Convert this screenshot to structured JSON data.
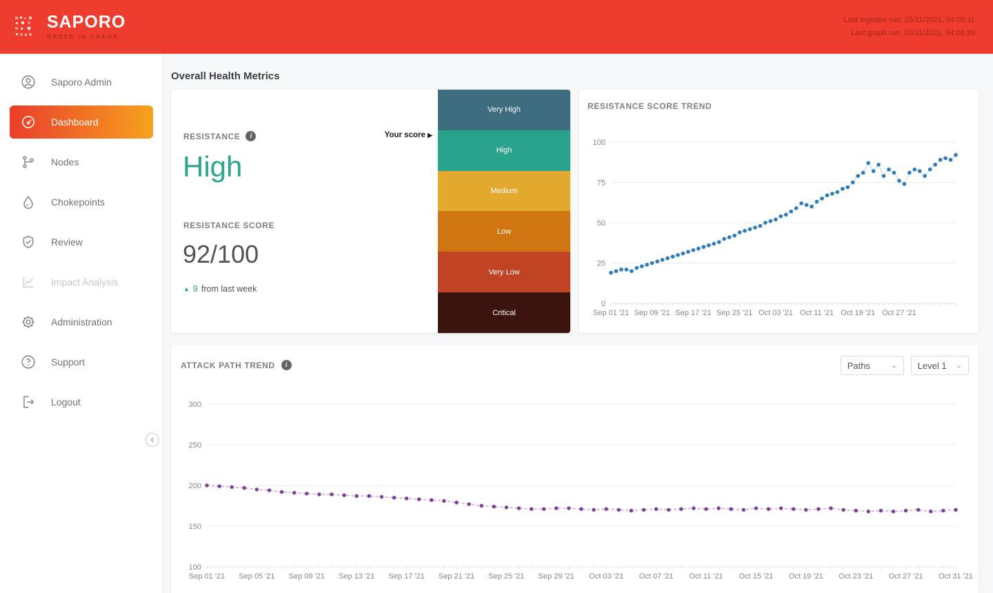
{
  "header": {
    "brand": "SAPORO",
    "tagline": "ORDER IN CHAOS",
    "last_ingestor_run": "Last ingestor run: 25/11/2021, 04:08:11",
    "last_graph_run": "Last graph run: 25/11/2021, 04:08:39",
    "background_color": "#ee3c2e"
  },
  "sidebar": {
    "items": [
      {
        "label": "Saporo Admin",
        "active": false,
        "disabled": false
      },
      {
        "label": "Dashboard",
        "active": true,
        "disabled": false
      },
      {
        "label": "Nodes",
        "active": false,
        "disabled": false
      },
      {
        "label": "Chokepoints",
        "active": false,
        "disabled": false
      },
      {
        "label": "Review",
        "active": false,
        "disabled": false
      },
      {
        "label": "Impact Analysis",
        "active": false,
        "disabled": true
      },
      {
        "label": "Administration",
        "active": false,
        "disabled": false
      },
      {
        "label": "Support",
        "active": false,
        "disabled": false
      },
      {
        "label": "Logout",
        "active": false,
        "disabled": false
      }
    ],
    "active_gradient": [
      "#ea3d2d",
      "#f6a21d"
    ]
  },
  "main": {
    "title": "Overall Health Metrics",
    "resistance_panel": {
      "label": "RESISTANCE",
      "value": "High",
      "value_color": "#2aa68c",
      "score_label": "RESISTANCE SCORE",
      "score": "92/100",
      "delta_arrow": "▲",
      "delta_value": "9",
      "delta_text": "from last week",
      "delta_color": "#27a572",
      "your_score_label": "Your score",
      "your_score_pointer": "▶",
      "scale": [
        {
          "label": "Very High",
          "color": "#3d6d7f"
        },
        {
          "label": "High",
          "color": "#2aa38d"
        },
        {
          "label": "Medium",
          "color": "#e3a92f"
        },
        {
          "label": "Low",
          "color": "#cf7512"
        },
        {
          "label": "Very Low",
          "color": "#c04424"
        },
        {
          "label": "Critical",
          "color": "#3b140f"
        }
      ]
    },
    "attack_panel": {
      "title": "ATTACK PATH TREND",
      "filters": [
        {
          "label": "Paths"
        },
        {
          "label": "Level 1"
        }
      ]
    }
  },
  "chart_data": [
    {
      "name": "resistance-score-trend",
      "type": "scatter",
      "title": "RESISTANCE SCORE TREND",
      "ylim": [
        0,
        100
      ],
      "yticks": [
        0,
        25,
        50,
        75,
        100
      ],
      "x_tick_labels": [
        "Sep 01 '21",
        "Sep 09 '21",
        "Sep 17 '21",
        "Sep 25 '21",
        "Oct 03 '21",
        "Oct 11 '21",
        "Oct 19 '21",
        "Oct 27 '21"
      ],
      "x_tick_step": 8,
      "x_start": "Sep 01 '21",
      "x_interval": "daily",
      "values": [
        19,
        20,
        21,
        21,
        20,
        22,
        23,
        24,
        25,
        26,
        27,
        28,
        29,
        30,
        31,
        32,
        33,
        34,
        35,
        36,
        37,
        38,
        40,
        41,
        42,
        44,
        45,
        46,
        47,
        48,
        50,
        51,
        52,
        54,
        55,
        57,
        59,
        62,
        61,
        60,
        63,
        65,
        67,
        68,
        69,
        71,
        72,
        75,
        79,
        81,
        87,
        82,
        86,
        79,
        83,
        81,
        76,
        74,
        81,
        83,
        82,
        79,
        83,
        86,
        89,
        90,
        89,
        92
      ],
      "point_color": "#2e7cb5",
      "line_color": "#b9d4e8",
      "grid": true,
      "legend": "none"
    },
    {
      "name": "attack-path-trend",
      "type": "line",
      "title": "ATTACK PATH TREND",
      "ylim": [
        100,
        300
      ],
      "yticks": [
        100,
        150,
        200,
        250,
        300
      ],
      "x_tick_labels": [
        "Sep 01 '21",
        "Sep 05 '21",
        "Sep 09 '21",
        "Sep 13 '21",
        "Sep 17 '21",
        "Sep 21 '21",
        "Sep 25 '21",
        "Sep 29 '21",
        "Oct 03 '21",
        "Oct 07 '21",
        "Oct 11 '21",
        "Oct 15 '21",
        "Oct 19 '21",
        "Oct 23 '21",
        "Oct 27 '21",
        "Oct 31 '21"
      ],
      "x_tick_step": 4,
      "x_start": "Sep 01 '21",
      "x_interval": "daily",
      "values": [
        200,
        199,
        198,
        197,
        195,
        194,
        192,
        191,
        190,
        189,
        189,
        188,
        187,
        187,
        186,
        185,
        184,
        183,
        182,
        181,
        179,
        177,
        175,
        174,
        173,
        172,
        171,
        171,
        172,
        172,
        171,
        170,
        171,
        170,
        169,
        170,
        171,
        170,
        171,
        172,
        171,
        172,
        171,
        170,
        172,
        171,
        172,
        171,
        170,
        171,
        172,
        170,
        169,
        168,
        169,
        168,
        169,
        170,
        168,
        169,
        170
      ],
      "point_color": "#7d3c98",
      "line_color": "#c9a3d8",
      "line_dash": "4 3",
      "grid": true,
      "legend": "none"
    }
  ]
}
